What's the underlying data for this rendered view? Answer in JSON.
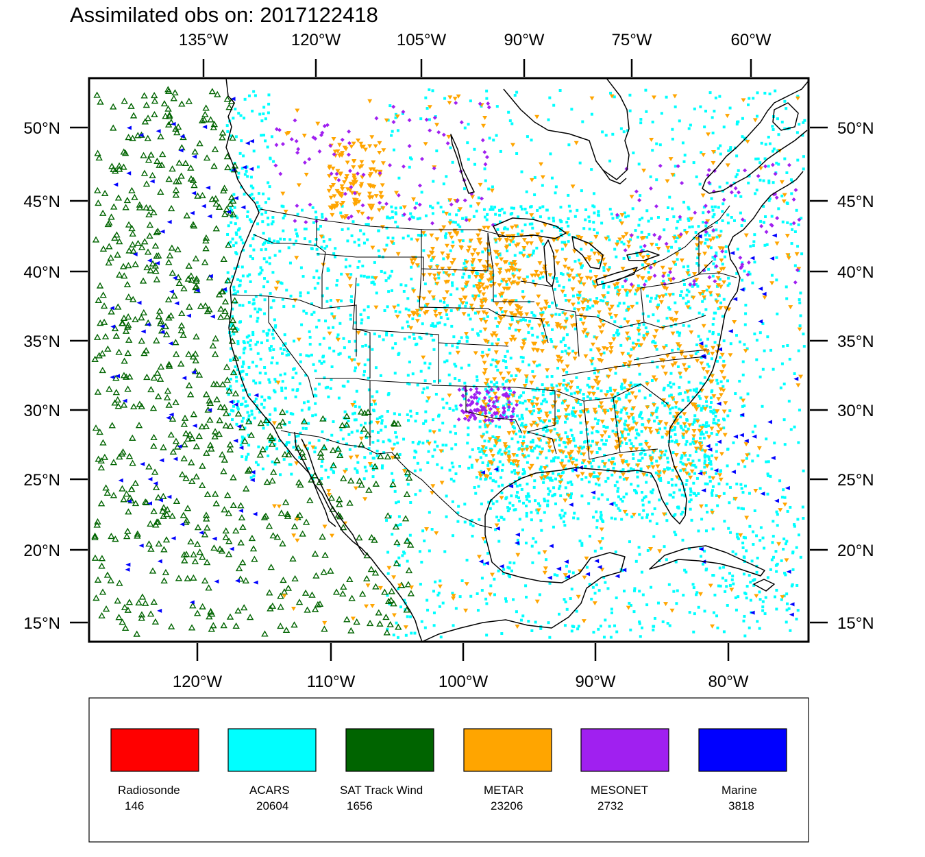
{
  "title": "Assimilated obs on: 2017122418",
  "map": {
    "top_lon_labels": [
      "135°W",
      "120°W",
      "105°W",
      "90°W",
      "75°W",
      "60°W"
    ],
    "bottom_lon_labels": [
      "120°W",
      "110°W",
      "100°W",
      "90°W",
      "80°W"
    ],
    "lat_labels": [
      "50°N",
      "45°N",
      "40°N",
      "35°N",
      "30°N",
      "25°N",
      "20°N",
      "15°N"
    ],
    "lon_range": [
      -128,
      -74
    ],
    "lat_range": [
      14,
      53
    ]
  },
  "legend": [
    {
      "name": "Radiosonde",
      "count": "146",
      "color": "#ff0000",
      "marker": "none"
    },
    {
      "name": "ACARS",
      "count": "20604",
      "color": "#00ffff",
      "marker": "square"
    },
    {
      "name": "SAT Track Wind",
      "count": "1656",
      "color": "#006400",
      "marker": "triangle-up"
    },
    {
      "name": "METAR",
      "count": "23206",
      "color": "#ffa500",
      "marker": "triangle-down"
    },
    {
      "name": "MESONET",
      "count": "2732",
      "color": "#a020f0",
      "marker": "diamond"
    },
    {
      "name": "Marine",
      "count": "3818",
      "color": "#0000ff",
      "marker": "triangle-left"
    }
  ]
}
